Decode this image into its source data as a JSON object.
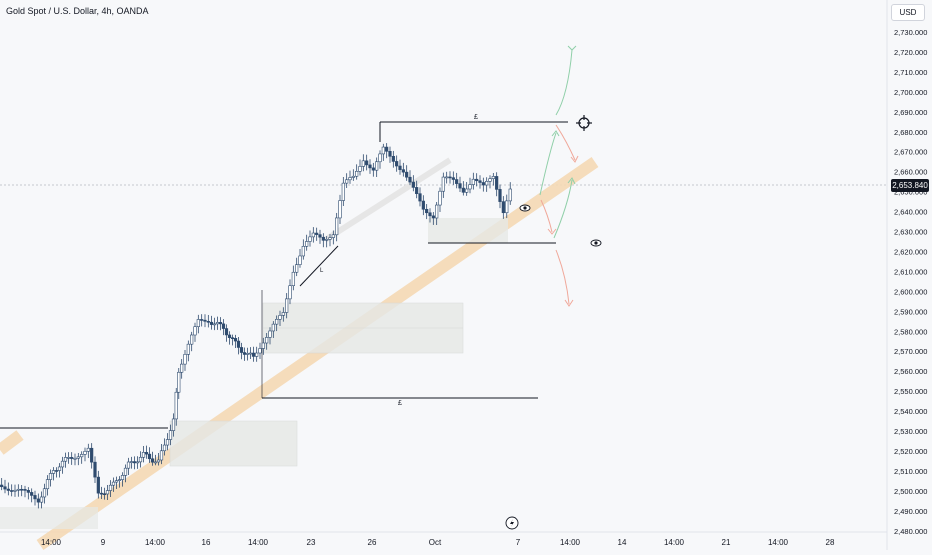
{
  "header": {
    "title": "Gold Spot / U.S. Dollar, 4h, OANDA",
    "currency_button": "USD"
  },
  "price_axis": {
    "labels": [
      "2,730.000",
      "2,720.000",
      "2,710.000",
      "2,700.000",
      "2,690.000",
      "2,680.000",
      "2,670.000",
      "2,660.000",
      "2,650.000",
      "2,640.000",
      "2,630.000",
      "2,620.000",
      "2,610.000",
      "2,600.000",
      "2,590.000",
      "2,580.000",
      "2,570.000",
      "2,560.000",
      "2,550.000",
      "2,540.000",
      "2,530.000",
      "2,520.000",
      "2,510.000",
      "2,500.000",
      "2,490.000",
      "2,480.000"
    ],
    "current_price": "2,653.840"
  },
  "time_axis": {
    "labels": [
      "14:00",
      "9",
      "14:00",
      "16",
      "14:00",
      "23",
      "26",
      "Oct",
      "7",
      "14:00",
      "14",
      "14:00",
      "21",
      "14:00",
      "28"
    ]
  },
  "annotations": {
    "level_marker_top": "£",
    "level_marker_bottom": "£",
    "small_marker": "L"
  },
  "colors": {
    "background": "#f7f8fa",
    "candle_up": "#ffffff",
    "candle_down": "#2f4b6e",
    "trendline": "#f5d9b5",
    "arrow_up": "#8fcfa8",
    "arrow_down": "#f0a89a",
    "zone_fill": "#e6e8e6"
  },
  "icons": [
    "crosshair-target-icon",
    "eye-icon",
    "lightning-icon"
  ]
}
